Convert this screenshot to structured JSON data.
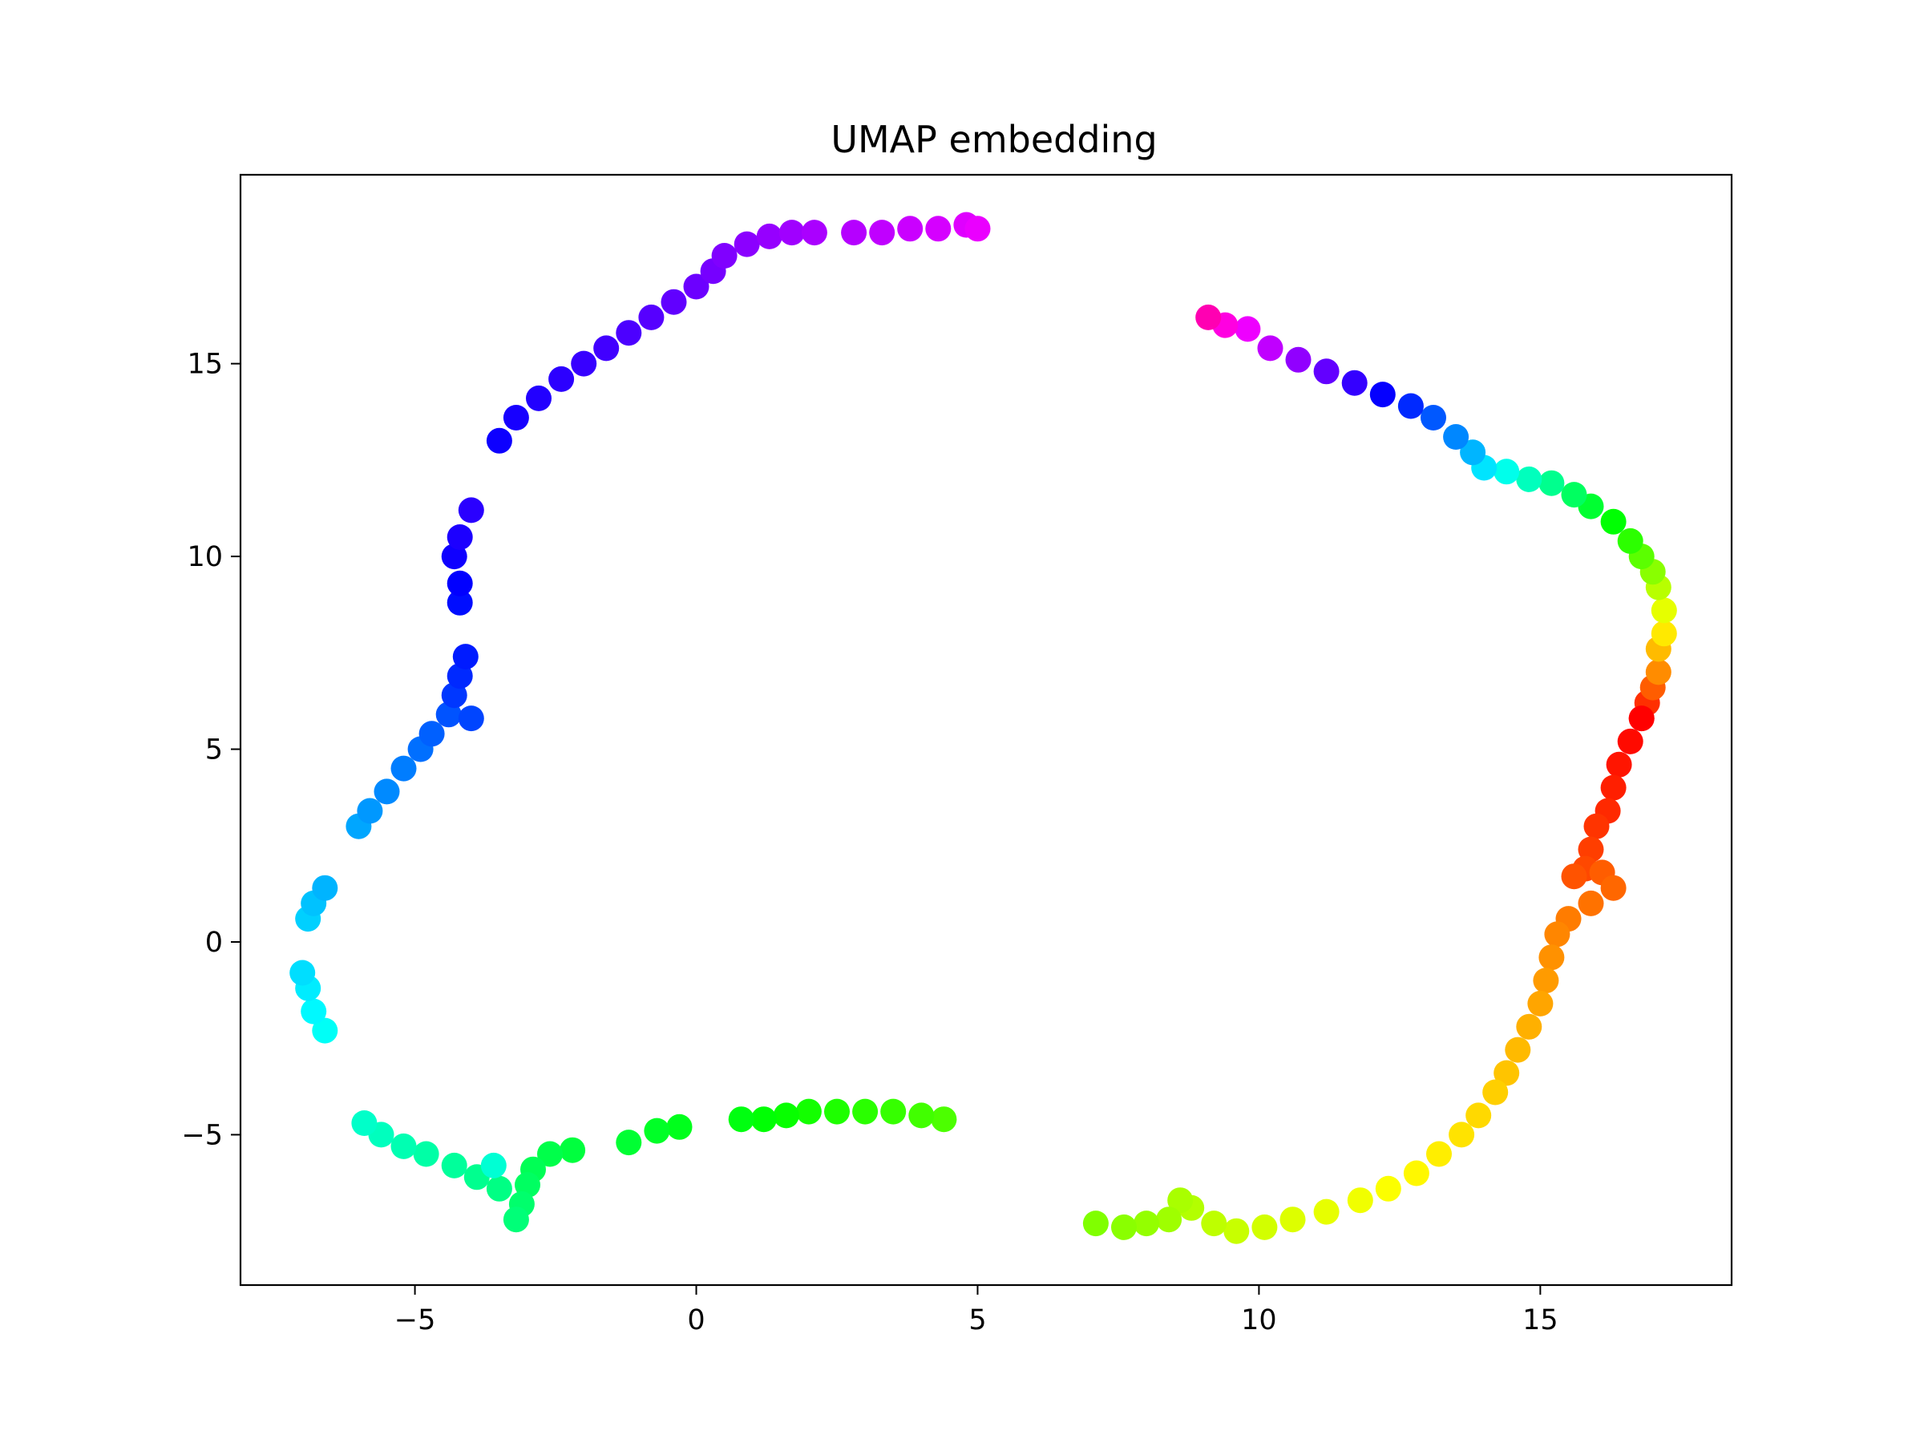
{
  "chart_data": {
    "type": "scatter",
    "title": "UMAP embedding",
    "xlabel": "",
    "ylabel": "",
    "xlim": [
      -8.1,
      18.4
    ],
    "ylim": [
      -8.9,
      19.9
    ],
    "x_ticks": [
      -5,
      0,
      5,
      10,
      15
    ],
    "y_ticks": [
      -5,
      0,
      5,
      10,
      15
    ],
    "x_tick_labels": [
      "−5",
      "0",
      "5",
      "10",
      "15"
    ],
    "y_tick_labels": [
      "−5",
      "0",
      "5",
      "10",
      "15"
    ],
    "grid": false,
    "legend": "none",
    "colormap": "hsv",
    "series": [
      {
        "color_start_hue": 0,
        "color_end_hue": 318,
        "points": [
          [
            16.8,
            5.8
          ],
          [
            16.9,
            6.2
          ],
          [
            17.0,
            6.6
          ],
          [
            17.1,
            7.0
          ],
          [
            17.1,
            7.6
          ],
          [
            17.2,
            8.0
          ],
          [
            17.2,
            8.6
          ],
          [
            17.1,
            9.2
          ],
          [
            17.0,
            9.6
          ],
          [
            16.8,
            10.0
          ],
          [
            16.6,
            10.4
          ],
          [
            16.3,
            10.9
          ],
          [
            15.9,
            11.3
          ],
          [
            15.6,
            11.6
          ],
          [
            15.2,
            11.9
          ],
          [
            14.8,
            12.0
          ],
          [
            14.4,
            12.2
          ],
          [
            14.0,
            12.3
          ],
          [
            13.8,
            12.7
          ],
          [
            13.5,
            13.1
          ],
          [
            13.1,
            13.6
          ],
          [
            12.7,
            13.9
          ],
          [
            12.2,
            14.2
          ],
          [
            11.7,
            14.5
          ],
          [
            11.2,
            14.8
          ],
          [
            10.7,
            15.1
          ],
          [
            10.2,
            15.4
          ],
          [
            9.8,
            15.9
          ],
          [
            9.4,
            16.0
          ],
          [
            9.1,
            16.2
          ]
        ]
      },
      {
        "color_start_hue": 0,
        "color_end_hue": 90,
        "points": [
          [
            16.8,
            5.8
          ],
          [
            16.6,
            5.2
          ],
          [
            16.4,
            4.6
          ],
          [
            16.3,
            4.0
          ],
          [
            16.2,
            3.4
          ],
          [
            16.0,
            3.0
          ],
          [
            15.9,
            2.4
          ],
          [
            15.8,
            1.9
          ],
          [
            15.6,
            1.7
          ],
          [
            16.1,
            1.8
          ],
          [
            16.3,
            1.4
          ],
          [
            15.9,
            1.0
          ],
          [
            15.5,
            0.6
          ],
          [
            15.3,
            0.2
          ],
          [
            15.2,
            -0.4
          ],
          [
            15.1,
            -1.0
          ],
          [
            15.0,
            -1.6
          ],
          [
            14.8,
            -2.2
          ],
          [
            14.6,
            -2.8
          ],
          [
            14.4,
            -3.4
          ],
          [
            14.2,
            -3.9
          ],
          [
            13.9,
            -4.5
          ],
          [
            13.6,
            -5.0
          ],
          [
            13.2,
            -5.5
          ],
          [
            12.8,
            -6.0
          ],
          [
            12.3,
            -6.4
          ],
          [
            11.8,
            -6.7
          ],
          [
            11.2,
            -7.0
          ],
          [
            10.6,
            -7.2
          ],
          [
            10.1,
            -7.4
          ],
          [
            9.6,
            -7.5
          ],
          [
            9.2,
            -7.3
          ],
          [
            8.8,
            -6.9
          ],
          [
            8.6,
            -6.7
          ],
          [
            8.4,
            -7.2
          ],
          [
            8.0,
            -7.3
          ],
          [
            7.6,
            -7.4
          ],
          [
            7.1,
            -7.3
          ]
        ]
      },
      {
        "color_start_hue": 102,
        "color_end_hue": 170,
        "points": [
          [
            4.4,
            -4.6
          ],
          [
            4.0,
            -4.5
          ],
          [
            3.5,
            -4.4
          ],
          [
            3.0,
            -4.4
          ],
          [
            2.5,
            -4.4
          ],
          [
            2.0,
            -4.4
          ],
          [
            1.6,
            -4.5
          ],
          [
            1.2,
            -4.6
          ],
          [
            0.8,
            -4.6
          ],
          [
            -0.3,
            -4.8
          ],
          [
            -0.7,
            -4.9
          ],
          [
            -1.2,
            -5.2
          ],
          [
            -2.2,
            -5.4
          ],
          [
            -2.6,
            -5.5
          ],
          [
            -2.9,
            -5.9
          ],
          [
            -3.0,
            -6.3
          ],
          [
            -3.1,
            -6.8
          ],
          [
            -3.2,
            -7.2
          ],
          [
            -3.5,
            -6.4
          ],
          [
            -3.9,
            -6.1
          ],
          [
            -4.3,
            -5.8
          ],
          [
            -4.8,
            -5.5
          ],
          [
            -5.2,
            -5.3
          ],
          [
            -5.6,
            -5.0
          ],
          [
            -5.9,
            -4.7
          ],
          [
            -3.6,
            -5.8
          ]
        ]
      },
      {
        "color_start_hue": 178,
        "color_end_hue": 250,
        "points": [
          [
            -6.6,
            -2.3
          ],
          [
            -6.8,
            -1.8
          ],
          [
            -6.9,
            -1.2
          ],
          [
            -7.0,
            -0.8
          ],
          [
            -6.9,
            0.6
          ],
          [
            -6.8,
            1.0
          ],
          [
            -6.6,
            1.4
          ],
          [
            -6.0,
            3.0
          ],
          [
            -5.8,
            3.4
          ],
          [
            -5.5,
            3.9
          ],
          [
            -5.2,
            4.5
          ],
          [
            -4.9,
            5.0
          ],
          [
            -4.7,
            5.4
          ],
          [
            -4.4,
            5.9
          ],
          [
            -4.0,
            5.8
          ],
          [
            -4.3,
            6.4
          ],
          [
            -4.2,
            6.9
          ],
          [
            -4.1,
            7.4
          ],
          [
            -4.2,
            8.8
          ],
          [
            -4.2,
            9.3
          ],
          [
            -4.3,
            10.0
          ],
          [
            -4.2,
            10.5
          ],
          [
            -4.0,
            11.2
          ]
        ]
      },
      {
        "color_start_hue": 243,
        "color_end_hue": 295,
        "points": [
          [
            -3.5,
            13.0
          ],
          [
            -3.2,
            13.6
          ],
          [
            -2.8,
            14.1
          ],
          [
            -2.4,
            14.6
          ],
          [
            -2.0,
            15.0
          ],
          [
            -1.6,
            15.4
          ],
          [
            -1.2,
            15.8
          ],
          [
            -0.8,
            16.2
          ],
          [
            -0.4,
            16.6
          ],
          [
            0.0,
            17.0
          ],
          [
            0.3,
            17.4
          ],
          [
            0.5,
            17.8
          ],
          [
            0.9,
            18.1
          ],
          [
            1.3,
            18.3
          ],
          [
            1.7,
            18.4
          ],
          [
            2.1,
            18.4
          ],
          [
            2.8,
            18.4
          ],
          [
            3.3,
            18.4
          ],
          [
            3.8,
            18.5
          ],
          [
            4.3,
            18.5
          ],
          [
            4.8,
            18.6
          ],
          [
            5.0,
            18.5
          ]
        ]
      }
    ]
  }
}
